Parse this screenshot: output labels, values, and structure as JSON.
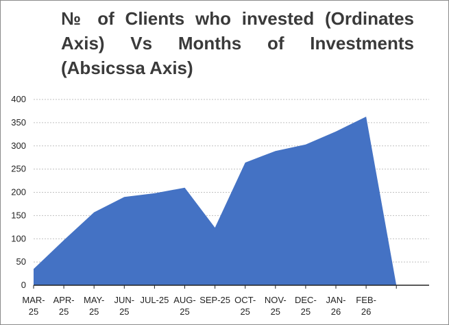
{
  "chart_data": {
    "type": "area",
    "title": "№ of Clients who invested (Ordinates Axis) Vs Months of Investments (Absicssa Axis)",
    "categories": [
      [
        "MAR-",
        "25"
      ],
      [
        "APR-",
        "25"
      ],
      [
        "MAY-",
        "25"
      ],
      [
        "JUN-",
        "25"
      ],
      [
        "JUL-25"
      ],
      [
        "AUG-",
        "25"
      ],
      [
        "SEP-25"
      ],
      [
        "OCT-",
        "25"
      ],
      [
        "NOV-",
        "25"
      ],
      [
        "DEC-",
        "25"
      ],
      [
        "JAN-",
        "26"
      ],
      [
        "FEB-",
        "26"
      ],
      [
        ""
      ]
    ],
    "values": [
      35,
      97,
      157,
      190,
      198,
      210,
      124,
      264,
      289,
      303,
      331,
      363,
      0
    ],
    "ylim": [
      0,
      400
    ],
    "yticks": [
      0,
      50,
      100,
      150,
      200,
      250,
      300,
      350,
      400
    ],
    "grid": true,
    "legend": "none",
    "colors": {
      "fill": "#4472C4",
      "grid": "#bfbfbf",
      "axis": "#222222"
    }
  }
}
